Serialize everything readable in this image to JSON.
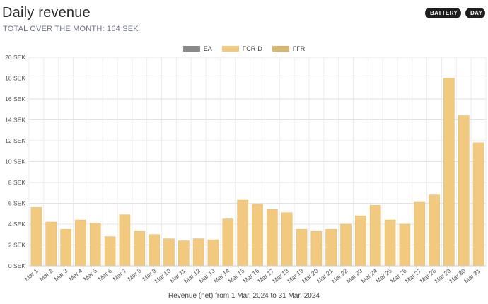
{
  "header": {
    "title": "Daily revenue",
    "subtitle": "TOTAL OVER THE MONTH: 164 SEK",
    "buttons": [
      "BATTERY",
      "DAY"
    ]
  },
  "legend": [
    {
      "label": "EA",
      "color": "#8a8a8a"
    },
    {
      "label": "FCR-D",
      "color": "#f2ca7f"
    },
    {
      "label": "FFR",
      "color": "#d9b56e"
    }
  ],
  "caption": "Revenue (net) from 1 Mar, 2024 to 31 Mar, 2024",
  "chart_data": {
    "type": "bar",
    "categories": [
      "Mar 1",
      "Mar 2",
      "Mar 3",
      "Mar 4",
      "Mar 5",
      "Mar 6",
      "Mar 7",
      "Mar 8",
      "Mar 9",
      "Mar 10",
      "Mar 11",
      "Mar 12",
      "Mar 13",
      "Mar 14",
      "Mar 15",
      "Mar 16",
      "Mar 17",
      "Mar 18",
      "Mar 19",
      "Mar 20",
      "Mar 21",
      "Mar 22",
      "Mar 23",
      "Mar 24",
      "Mar 25",
      "Mar 26",
      "Mar 27",
      "Mar 28",
      "Mar 29",
      "Mar 30",
      "Mar 31"
    ],
    "series": [
      {
        "name": "FCR-D",
        "values": [
          5.6,
          4.2,
          3.5,
          4.4,
          4.1,
          2.8,
          4.9,
          3.3,
          3.0,
          2.6,
          2.4,
          2.6,
          2.5,
          4.5,
          6.3,
          5.9,
          5.4,
          5.1,
          3.5,
          3.3,
          3.5,
          4.0,
          4.8,
          5.8,
          4.4,
          4.0,
          6.1,
          6.8,
          18.0,
          14.4,
          11.8
        ]
      }
    ],
    "yticks": [
      "0 SEK",
      "2 SEK",
      "4 SEK",
      "6 SEK",
      "8 SEK",
      "10 SEK",
      "12 SEK",
      "14 SEK",
      "16 SEK",
      "18 SEK",
      "20 SEK"
    ],
    "ylim": [
      0,
      20
    ],
    "bar_color": "#f2ca7f",
    "bar_edge": "#e7bc6c",
    "grid": true,
    "legend_position": "top-center"
  }
}
